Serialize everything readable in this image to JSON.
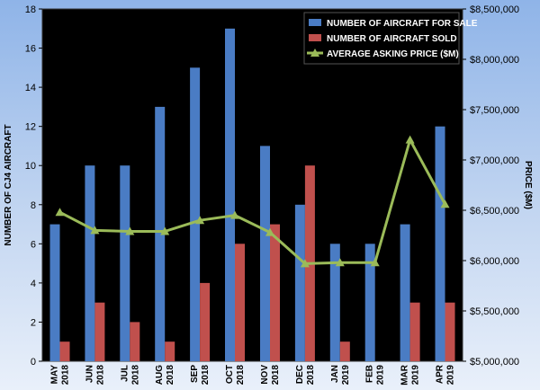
{
  "chart_data": {
    "type": "bar",
    "categories": [
      [
        "MAY",
        "2018"
      ],
      [
        "JUN",
        "2018"
      ],
      [
        "JUL",
        "2018"
      ],
      [
        "AUG",
        "2018"
      ],
      [
        "SEP",
        "2018"
      ],
      [
        "OCT",
        "2018"
      ],
      [
        "NOV",
        "2018"
      ],
      [
        "DEC",
        "2018"
      ],
      [
        "JAN",
        "2019"
      ],
      [
        "FEB",
        "2019"
      ],
      [
        "MAR",
        "2019"
      ],
      [
        "APR",
        "2019"
      ]
    ],
    "series": [
      {
        "name": "NUMBER OF AIRCRAFT FOR SALE",
        "type": "bar",
        "axis": "left",
        "color": "#4a7cc4",
        "values": [
          7,
          10,
          10,
          13,
          15,
          17,
          11,
          8,
          6,
          6,
          7,
          12
        ]
      },
      {
        "name": "NUMBER OF AIRCRAFT SOLD",
        "type": "bar",
        "axis": "left",
        "color": "#c0504d",
        "values": [
          1,
          3,
          2,
          1,
          4,
          6,
          7,
          10,
          1,
          0,
          3,
          3
        ]
      },
      {
        "name": "AVERAGE ASKING PRICE ($M)",
        "type": "line",
        "axis": "right",
        "color": "#9bbb59",
        "values": [
          6480000,
          6300000,
          6290000,
          6290000,
          6400000,
          6450000,
          6280000,
          5970000,
          5980000,
          5980000,
          7200000,
          6560000
        ]
      }
    ],
    "ylabel": "NUMBER OF CJ4 AIRCRAFT",
    "y2label": "PRICE ($M)",
    "ylim": [
      0,
      18
    ],
    "yticks": [
      0,
      2,
      4,
      6,
      8,
      10,
      12,
      14,
      16,
      18
    ],
    "y2lim": [
      5000000,
      8500000
    ],
    "y2ticks": [
      "$5,000,000",
      "$5,500,000",
      "$6,000,000",
      "$6,500,000",
      "$7,000,000",
      "$7,500,000",
      "$8,000,000",
      "$8,500,000"
    ],
    "legend_position": "top-right",
    "plot_background": "#000000",
    "grid": false
  }
}
